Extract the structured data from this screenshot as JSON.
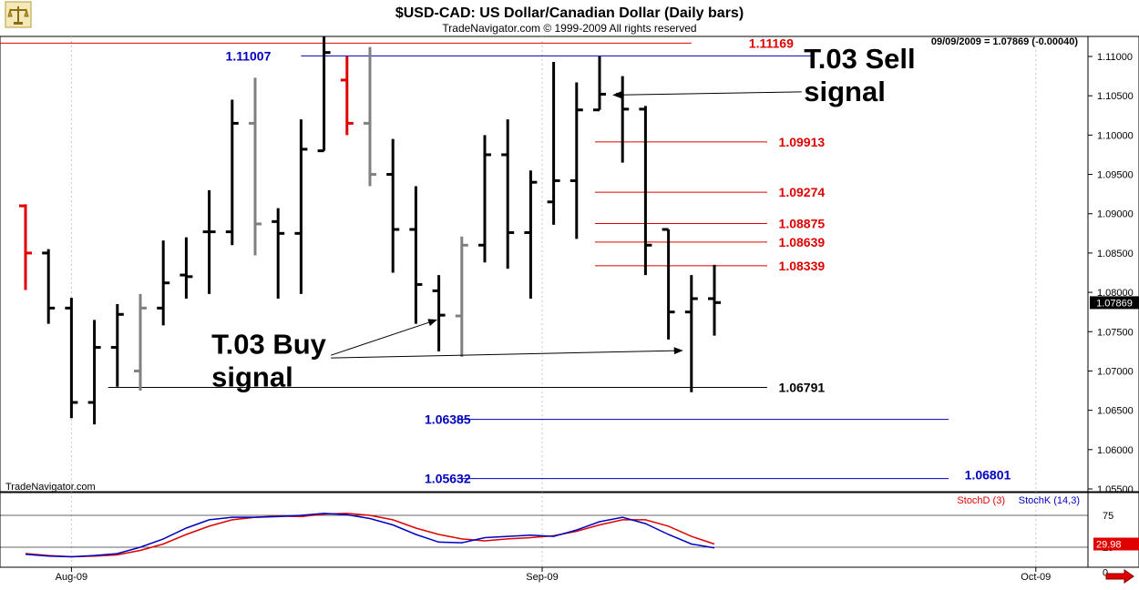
{
  "header": {
    "title": "$USD-CAD:  US Dollar/Canadian Dollar  (Daily bars)",
    "subtitle": "TradeNavigator.com © 1999-2009 All rights reserved",
    "readout": "09/09/2009 = 1.07869 (-0.00040)",
    "watermark": "TradeNavigator.com",
    "logo_icon": "balance-scale-icon",
    "nav_icon": "right-arrow-icon"
  },
  "colors": {
    "up_bar": "#000000",
    "down_bar": "#808080",
    "red_bar": "#e00000",
    "red_level": "#e00000",
    "blue_level": "#0000c0",
    "black_level": "#000000",
    "stochD": "#e00000",
    "stochK": "#0000c0"
  },
  "chart_data": [
    {
      "type": "bar",
      "subtype": "ohlc",
      "title": "$USD-CAD:  US Dollar/Canadian Dollar  (Daily bars)",
      "ylim": [
        1.0545,
        1.1125
      ],
      "y_ticks": [
        "1.11000",
        "1.10500",
        "1.10000",
        "1.09500",
        "1.09000",
        "1.08500",
        "1.08000",
        "1.07500",
        "1.07000",
        "1.06500",
        "1.06000",
        "1.05500"
      ],
      "x_tick_labels": [
        {
          "label": "Aug-09",
          "at": 2
        },
        {
          "label": "Sep-09",
          "at": 22.5
        },
        {
          "label": "Oct-09",
          "at": 44
        }
      ],
      "last_price": "1.07869",
      "bars": [
        {
          "o": 1.091,
          "h": 1.0912,
          "l": 1.0803,
          "c": 1.085,
          "color": "red"
        },
        {
          "o": 1.085,
          "h": 1.0855,
          "l": 1.076,
          "c": 1.078,
          "color": "black"
        },
        {
          "o": 1.078,
          "h": 1.0793,
          "l": 1.064,
          "c": 1.066,
          "color": "black"
        },
        {
          "o": 1.066,
          "h": 1.0765,
          "l": 1.0632,
          "c": 1.073,
          "color": "black"
        },
        {
          "o": 1.073,
          "h": 1.0785,
          "l": 1.068,
          "c": 1.0772,
          "color": "black"
        },
        {
          "o": 1.07,
          "h": 1.0798,
          "l": 1.0675,
          "c": 1.078,
          "color": "gray"
        },
        {
          "o": 1.078,
          "h": 1.0866,
          "l": 1.0758,
          "c": 1.0812,
          "color": "black"
        },
        {
          "o": 1.0822,
          "h": 1.087,
          "l": 1.0792,
          "c": 1.082,
          "color": "black"
        },
        {
          "o": 1.0877,
          "h": 1.093,
          "l": 1.0798,
          "c": 1.0877,
          "color": "black"
        },
        {
          "o": 1.0877,
          "h": 1.1045,
          "l": 1.086,
          "c": 1.1015,
          "color": "black"
        },
        {
          "o": 1.1015,
          "h": 1.1073,
          "l": 1.0847,
          "c": 1.0887,
          "color": "gray"
        },
        {
          "o": 1.089,
          "h": 1.0907,
          "l": 1.0792,
          "c": 1.0875,
          "color": "black"
        },
        {
          "o": 1.0875,
          "h": 1.102,
          "l": 1.0798,
          "c": 1.0982,
          "color": "black"
        },
        {
          "o": 1.098,
          "h": 1.1125,
          "l": 1.098,
          "c": 1.1105,
          "color": "black"
        },
        {
          "o": 1.107,
          "h": 1.11,
          "l": 1.1,
          "c": 1.1015,
          "color": "red"
        },
        {
          "o": 1.1015,
          "h": 1.1112,
          "l": 1.0935,
          "c": 1.095,
          "color": "gray"
        },
        {
          "o": 1.095,
          "h": 1.0995,
          "l": 1.0825,
          "c": 1.088,
          "color": "black"
        },
        {
          "o": 1.088,
          "h": 1.0935,
          "l": 1.076,
          "c": 1.081,
          "color": "black"
        },
        {
          "o": 1.0802,
          "h": 1.0822,
          "l": 1.0725,
          "c": 1.0771,
          "color": "black"
        },
        {
          "o": 1.077,
          "h": 1.0871,
          "l": 1.0718,
          "c": 1.086,
          "color": "gray"
        },
        {
          "o": 1.086,
          "h": 1.1,
          "l": 1.0838,
          "c": 1.0975,
          "color": "black"
        },
        {
          "o": 1.0975,
          "h": 1.102,
          "l": 1.083,
          "c": 1.0876,
          "color": "black"
        },
        {
          "o": 1.0876,
          "h": 1.0955,
          "l": 1.0792,
          "c": 1.094,
          "color": "black"
        },
        {
          "o": 1.0915,
          "h": 1.1093,
          "l": 1.0886,
          "c": 1.0942,
          "color": "black"
        },
        {
          "o": 1.0942,
          "h": 1.1067,
          "l": 1.0868,
          "c": 1.1032,
          "color": "black"
        },
        {
          "o": 1.1032,
          "h": 1.11,
          "l": 1.1032,
          "c": 1.1052,
          "color": "black"
        },
        {
          "o": 1.1052,
          "h": 1.1075,
          "l": 1.0965,
          "c": 1.1033,
          "color": "black"
        },
        {
          "o": 1.1033,
          "h": 1.1037,
          "l": 1.0822,
          "c": 1.086,
          "color": "black"
        },
        {
          "o": 1.088,
          "h": 1.088,
          "l": 1.074,
          "c": 1.0775,
          "color": "black"
        },
        {
          "o": 1.0775,
          "h": 1.0822,
          "l": 1.0673,
          "c": 1.0792,
          "color": "black"
        },
        {
          "o": 1.0792,
          "h": 1.0835,
          "l": 1.0745,
          "c": 1.0787,
          "color": "black"
        }
      ],
      "levels": [
        {
          "label": "1.11169",
          "value": 1.11169,
          "color": "red",
          "from": -2.5,
          "to": 29,
          "label_at": 31.5,
          "label_side": "right"
        },
        {
          "label": "1.11007",
          "value": 1.11007,
          "color": "blue",
          "from": 12,
          "to": 34.2,
          "label_at": 9.5,
          "label_side": "left"
        },
        {
          "label": "1.09913",
          "value": 1.09913,
          "color": "red",
          "from": 24.8,
          "to": 32.3,
          "label_at": 32.8,
          "label_side": "right"
        },
        {
          "label": "1.09274",
          "value": 1.09274,
          "color": "red",
          "from": 24.8,
          "to": 32.3,
          "label_at": 32.8,
          "label_side": "right"
        },
        {
          "label": "1.08875",
          "value": 1.08875,
          "color": "red",
          "from": 24.8,
          "to": 32.3,
          "label_at": 32.8,
          "label_side": "right"
        },
        {
          "label": "1.08639",
          "value": 1.08639,
          "color": "red",
          "from": 24.8,
          "to": 32.3,
          "label_at": 32.8,
          "label_side": "right"
        },
        {
          "label": "1.08339",
          "value": 1.08339,
          "color": "red",
          "from": 24.8,
          "to": 32.3,
          "label_at": 32.8,
          "label_side": "right"
        },
        {
          "label": "1.06791",
          "value": 1.06791,
          "color": "black",
          "from": 3.6,
          "to": 32.3,
          "label_at": 32.8,
          "label_side": "right"
        },
        {
          "label": "1.06385",
          "value": 1.06385,
          "color": "blue",
          "from": 18.8,
          "to": 40.2,
          "label_at": 18.2,
          "label_side": "left"
        },
        {
          "label": "1.05632",
          "value": 1.05632,
          "color": "blue",
          "from": 18.8,
          "to": 40.2,
          "label_at": 18.2,
          "label_side": "left"
        }
      ],
      "free_labels": [
        {
          "label": "1.06801",
          "value": 1.0568,
          "color": "blue",
          "at": 40.9
        }
      ],
      "annotations": [
        {
          "lines": [
            "T.03 Sell",
            "signal"
          ],
          "at": 33.9,
          "value": 1.1085,
          "arrow_from": [
            33.8,
            1.1055
          ],
          "arrow_to": [
            25.6,
            1.1051
          ]
        },
        {
          "lines": [
            "T.03 Buy",
            "signal"
          ],
          "at": 8.1,
          "value": 1.0722,
          "arrow_from": [
            13.3,
            1.072
          ],
          "arrow_to": [
            17.9,
            1.0765
          ],
          "arrow2_to": [
            28.6,
            1.0726
          ]
        }
      ]
    },
    {
      "type": "line",
      "title": "",
      "legend": [
        "StochD (3)",
        "StochK (14,3)"
      ],
      "ylim": [
        -5,
        100
      ],
      "y_ticks": [
        "75",
        "25",
        "0"
      ],
      "last_value": "29.98",
      "series": [
        {
          "name": "StochD (3)",
          "values": [
            15,
            12,
            10,
            11,
            13,
            20,
            30,
            45,
            58,
            68,
            72,
            74,
            73,
            77,
            78,
            75,
            68,
            55,
            45,
            38,
            35,
            38,
            40,
            43,
            50,
            60,
            68,
            68,
            58,
            42,
            29.98
          ]
        },
        {
          "name": "StochK (14,3)",
          "values": [
            14,
            11,
            10,
            12,
            15,
            25,
            38,
            55,
            68,
            72,
            72,
            73,
            75,
            78,
            76,
            70,
            60,
            45,
            33,
            32,
            40,
            42,
            44,
            42,
            52,
            65,
            72,
            62,
            45,
            30,
            24
          ]
        }
      ]
    }
  ]
}
